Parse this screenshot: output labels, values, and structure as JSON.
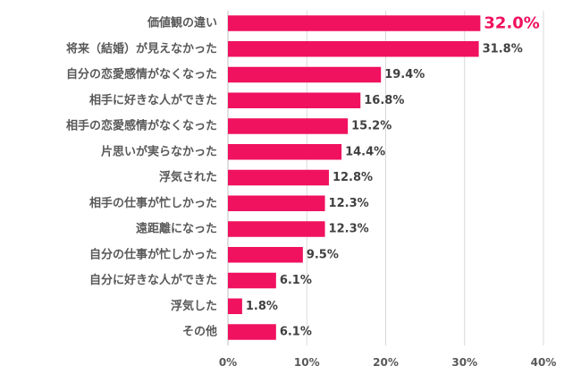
{
  "chart_data": {
    "type": "bar",
    "orientation": "horizontal",
    "categories": [
      "価値観の違い",
      "将来（結婚）が見えなかった",
      "自分の恋愛感情がなくなった",
      "相手に好きな人ができた",
      "相手の恋愛感情がなくなった",
      "片思いが実らなかった",
      "浮気された",
      "相手の仕事が忙しかった",
      "遠距離になった",
      "自分の仕事が忙しかった",
      "自分に好きな人ができた",
      "浮気した",
      "その他"
    ],
    "values": [
      32.0,
      31.8,
      19.4,
      16.8,
      15.2,
      14.4,
      12.8,
      12.3,
      12.3,
      9.5,
      6.1,
      1.8,
      6.1
    ],
    "value_labels": [
      "32.0%",
      "31.8%",
      "19.4%",
      "16.8%",
      "15.2%",
      "14.4%",
      "12.8%",
      "12.3%",
      "12.3%",
      "9.5%",
      "6.1%",
      "1.8%",
      "6.1%"
    ],
    "xlim": [
      0,
      40
    ],
    "xticks": [
      0,
      10,
      20,
      30,
      40
    ],
    "xtick_labels": [
      "0%",
      "10%",
      "20%",
      "30%",
      "40%"
    ],
    "grid": true,
    "bar_color": "#f0115f",
    "highlight_color": "#f0115f",
    "highlight_index": 0
  }
}
